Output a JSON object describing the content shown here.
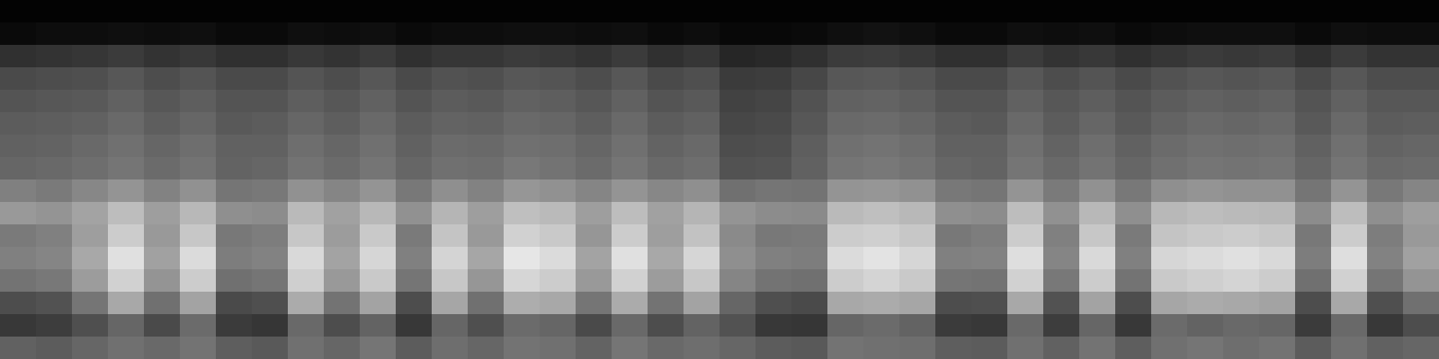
{
  "chart_data": {
    "type": "heatmap",
    "tick_labels": false,
    "zlim": [
      0,
      100
    ],
    "cells": [
      [
        38,
        36,
        40,
        44,
        41,
        45,
        37,
        35,
        44,
        40,
        46,
        36,
        43,
        40,
        45,
        44,
        39,
        46,
        41,
        43,
        40,
        36,
        35,
        45,
        44,
        43,
        37,
        36,
        44,
        38,
        45,
        37,
        44,
        46,
        43,
        45,
        36,
        44,
        38,
        40
      ],
      [
        22,
        24,
        31,
        40,
        29,
        42,
        23,
        21,
        41,
        30,
        39,
        22,
        40,
        31,
        42,
        40,
        29,
        41,
        30,
        39,
        32,
        22,
        21,
        40,
        42,
        39,
        23,
        22,
        41,
        24,
        40,
        22,
        42,
        39,
        41,
        40,
        23,
        41,
        22,
        30
      ],
      [
        30,
        32,
        46,
        66,
        44,
        64,
        29,
        31,
        67,
        45,
        64,
        30,
        65,
        44,
        68,
        66,
        46,
        67,
        45,
        64,
        40,
        31,
        29,
        66,
        67,
        65,
        30,
        31,
        66,
        32,
        64,
        30,
        65,
        67,
        66,
        64,
        30,
        66,
        31,
        44
      ],
      [
        45,
        47,
        61,
        82,
        58,
        80,
        44,
        46,
        81,
        60,
        79,
        46,
        78,
        59,
        84,
        80,
        60,
        82,
        61,
        78,
        52,
        45,
        44,
        80,
        83,
        79,
        46,
        45,
        82,
        47,
        80,
        45,
        79,
        81,
        83,
        80,
        44,
        82,
        46,
        58
      ],
      [
        50,
        52,
        66,
        88,
        63,
        86,
        49,
        51,
        85,
        64,
        84,
        50,
        83,
        65,
        90,
        86,
        64,
        88,
        66,
        84,
        56,
        50,
        49,
        86,
        89,
        84,
        50,
        51,
        87,
        52,
        85,
        50,
        84,
        86,
        88,
        85,
        49,
        87,
        51,
        63
      ],
      [
        48,
        50,
        62,
        80,
        60,
        78,
        47,
        49,
        78,
        61,
        79,
        48,
        77,
        60,
        82,
        79,
        59,
        80,
        62,
        76,
        54,
        47,
        48,
        80,
        81,
        78,
        47,
        49,
        80,
        50,
        78,
        48,
        77,
        79,
        80,
        78,
        47,
        80,
        49,
        60
      ],
      [
        60,
        58,
        64,
        74,
        62,
        72,
        56,
        55,
        73,
        63,
        72,
        57,
        71,
        62,
        75,
        73,
        62,
        74,
        63,
        71,
        58,
        55,
        54,
        73,
        75,
        72,
        56,
        55,
        74,
        57,
        72,
        56,
        72,
        74,
        73,
        72,
        55,
        74,
        56,
        62
      ],
      [
        50,
        48,
        53,
        58,
        51,
        57,
        46,
        47,
        57,
        52,
        58,
        47,
        56,
        51,
        59,
        57,
        52,
        58,
        53,
        56,
        44,
        46,
        45,
        58,
        59,
        57,
        47,
        46,
        58,
        48,
        57,
        47,
        56,
        58,
        57,
        57,
        46,
        58,
        47,
        52
      ],
      [
        40,
        41,
        43,
        46,
        42,
        45,
        39,
        40,
        45,
        42,
        46,
        40,
        44,
        43,
        47,
        45,
        42,
        46,
        41,
        43,
        32,
        33,
        38,
        46,
        47,
        45,
        40,
        39,
        46,
        41,
        45,
        40,
        44,
        46,
        45,
        46,
        40,
        46,
        41,
        42
      ],
      [
        38,
        39,
        41,
        44,
        40,
        43,
        38,
        38,
        43,
        40,
        44,
        38,
        42,
        41,
        44,
        43,
        40,
        44,
        39,
        41,
        30,
        31,
        37,
        44,
        45,
        43,
        38,
        38,
        44,
        39,
        43,
        38,
        42,
        44,
        43,
        44,
        38,
        44,
        39,
        40
      ],
      [
        36,
        37,
        38,
        41,
        37,
        40,
        35,
        36,
        40,
        37,
        41,
        36,
        39,
        38,
        41,
        40,
        37,
        41,
        36,
        38,
        28,
        29,
        34,
        41,
        42,
        40,
        36,
        35,
        41,
        36,
        40,
        35,
        39,
        41,
        40,
        41,
        35,
        41,
        36,
        37
      ],
      [
        33,
        34,
        35,
        38,
        34,
        37,
        33,
        33,
        37,
        34,
        38,
        33,
        36,
        35,
        38,
        37,
        34,
        38,
        33,
        35,
        26,
        27,
        32,
        38,
        39,
        37,
        33,
        33,
        38,
        34,
        37,
        33,
        36,
        38,
        37,
        38,
        33,
        38,
        34,
        34
      ],
      [
        29,
        30,
        31,
        34,
        30,
        33,
        29,
        29,
        33,
        30,
        34,
        29,
        32,
        31,
        34,
        33,
        30,
        34,
        29,
        31,
        23,
        24,
        28,
        34,
        35,
        33,
        29,
        29,
        34,
        30,
        33,
        29,
        32,
        34,
        33,
        34,
        29,
        34,
        30,
        30
      ],
      [
        19,
        20,
        21,
        23,
        20,
        22,
        19,
        19,
        22,
        20,
        23,
        19,
        21,
        21,
        23,
        22,
        20,
        23,
        19,
        21,
        15,
        16,
        19,
        23,
        24,
        22,
        19,
        19,
        23,
        20,
        22,
        19,
        21,
        23,
        22,
        23,
        19,
        23,
        20,
        20
      ],
      [
        4,
        5,
        5,
        6,
        5,
        6,
        4,
        4,
        6,
        5,
        6,
        4,
        5,
        5,
        6,
        6,
        5,
        6,
        4,
        5,
        3,
        3,
        4,
        6,
        7,
        6,
        4,
        4,
        6,
        5,
        6,
        4,
        5,
        6,
        6,
        6,
        4,
        6,
        5,
        5
      ],
      [
        1,
        1,
        1,
        1,
        1,
        1,
        1,
        1,
        1,
        1,
        1,
        1,
        1,
        1,
        1,
        1,
        1,
        1,
        1,
        1,
        1,
        1,
        1,
        1,
        1,
        1,
        1,
        1,
        1,
        1,
        1,
        1,
        1,
        1,
        1,
        1,
        1,
        1,
        1,
        1
      ]
    ]
  }
}
